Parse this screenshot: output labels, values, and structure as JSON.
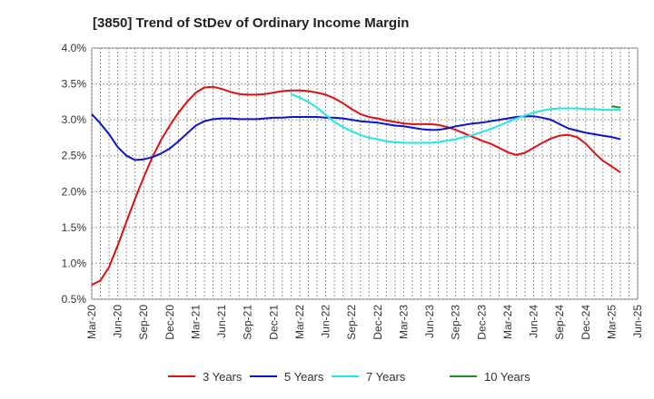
{
  "chart_data": {
    "type": "line",
    "title": "[3850]  Trend of StDev of Ordinary Income Margin",
    "xlabel": "",
    "ylabel": "",
    "ylim": [
      0.5,
      4.0
    ],
    "y_ticks": [
      "0.5%",
      "1.0%",
      "1.5%",
      "2.0%",
      "2.5%",
      "3.0%",
      "3.5%",
      "4.0%"
    ],
    "y_tick_values": [
      0.5,
      1.0,
      1.5,
      2.0,
      2.5,
      3.0,
      3.5,
      4.0
    ],
    "x_ticks": [
      "Mar-20",
      "Jun-20",
      "Sep-20",
      "Dec-20",
      "Mar-21",
      "Jun-21",
      "Sep-21",
      "Dec-21",
      "Mar-22",
      "Jun-22",
      "Sep-22",
      "Dec-22",
      "Mar-23",
      "Jun-23",
      "Sep-23",
      "Dec-23",
      "Mar-24",
      "Jun-24",
      "Sep-24",
      "Dec-24",
      "Mar-25",
      "Jun-25"
    ],
    "grid": true,
    "legend_position": "bottom",
    "x_range": [
      "2020-03",
      "2025-06"
    ],
    "series": [
      {
        "name": "3 Years",
        "color": "#dd1111",
        "points": [
          [
            "2020-03",
            0.7
          ],
          [
            "2020-04",
            0.76
          ],
          [
            "2020-05",
            0.95
          ],
          [
            "2020-06",
            1.25
          ],
          [
            "2020-07",
            1.58
          ],
          [
            "2020-08",
            1.9
          ],
          [
            "2020-09",
            2.2
          ],
          [
            "2020-10",
            2.48
          ],
          [
            "2020-11",
            2.72
          ],
          [
            "2020-12",
            2.92
          ],
          [
            "2021-01",
            3.1
          ],
          [
            "2021-02",
            3.25
          ],
          [
            "2021-03",
            3.38
          ],
          [
            "2021-04",
            3.45
          ],
          [
            "2021-05",
            3.46
          ],
          [
            "2021-06",
            3.43
          ],
          [
            "2021-07",
            3.39
          ],
          [
            "2021-08",
            3.36
          ],
          [
            "2021-09",
            3.35
          ],
          [
            "2021-10",
            3.35
          ],
          [
            "2021-11",
            3.36
          ],
          [
            "2021-12",
            3.38
          ],
          [
            "2022-01",
            3.4
          ],
          [
            "2022-02",
            3.41
          ],
          [
            "2022-03",
            3.41
          ],
          [
            "2022-04",
            3.4
          ],
          [
            "2022-05",
            3.38
          ],
          [
            "2022-06",
            3.35
          ],
          [
            "2022-07",
            3.3
          ],
          [
            "2022-08",
            3.23
          ],
          [
            "2022-09",
            3.15
          ],
          [
            "2022-10",
            3.08
          ],
          [
            "2022-11",
            3.04
          ],
          [
            "2022-12",
            3.02
          ],
          [
            "2023-01",
            2.99
          ],
          [
            "2023-02",
            2.97
          ],
          [
            "2023-03",
            2.95
          ],
          [
            "2023-04",
            2.94
          ],
          [
            "2023-05",
            2.94
          ],
          [
            "2023-06",
            2.94
          ],
          [
            "2023-07",
            2.93
          ],
          [
            "2023-08",
            2.9
          ],
          [
            "2023-09",
            2.86
          ],
          [
            "2023-10",
            2.81
          ],
          [
            "2023-11",
            2.76
          ],
          [
            "2023-12",
            2.71
          ],
          [
            "2024-01",
            2.67
          ],
          [
            "2024-02",
            2.61
          ],
          [
            "2024-03",
            2.55
          ],
          [
            "2024-04",
            2.51
          ],
          [
            "2024-05",
            2.54
          ],
          [
            "2024-06",
            2.61
          ],
          [
            "2024-07",
            2.68
          ],
          [
            "2024-08",
            2.74
          ],
          [
            "2024-09",
            2.78
          ],
          [
            "2024-10",
            2.79
          ],
          [
            "2024-11",
            2.76
          ],
          [
            "2024-12",
            2.67
          ],
          [
            "2025-01",
            2.54
          ],
          [
            "2025-02",
            2.43
          ],
          [
            "2025-03",
            2.35
          ],
          [
            "2025-04",
            2.27
          ]
        ]
      },
      {
        "name": "5 Years",
        "color": "#0a14c8",
        "points": [
          [
            "2020-03",
            3.08
          ],
          [
            "2020-04",
            2.95
          ],
          [
            "2020-05",
            2.8
          ],
          [
            "2020-06",
            2.62
          ],
          [
            "2020-07",
            2.5
          ],
          [
            "2020-08",
            2.44
          ],
          [
            "2020-09",
            2.45
          ],
          [
            "2020-10",
            2.48
          ],
          [
            "2020-11",
            2.53
          ],
          [
            "2020-12",
            2.6
          ],
          [
            "2021-01",
            2.7
          ],
          [
            "2021-02",
            2.81
          ],
          [
            "2021-03",
            2.92
          ],
          [
            "2021-04",
            2.98
          ],
          [
            "2021-05",
            3.01
          ],
          [
            "2021-06",
            3.02
          ],
          [
            "2021-07",
            3.02
          ],
          [
            "2021-08",
            3.01
          ],
          [
            "2021-09",
            3.01
          ],
          [
            "2021-10",
            3.01
          ],
          [
            "2021-11",
            3.02
          ],
          [
            "2021-12",
            3.03
          ],
          [
            "2022-01",
            3.03
          ],
          [
            "2022-02",
            3.04
          ],
          [
            "2022-03",
            3.04
          ],
          [
            "2022-04",
            3.04
          ],
          [
            "2022-05",
            3.04
          ],
          [
            "2022-06",
            3.03
          ],
          [
            "2022-07",
            3.03
          ],
          [
            "2022-08",
            3.02
          ],
          [
            "2022-09",
            3.0
          ],
          [
            "2022-10",
            2.98
          ],
          [
            "2022-11",
            2.97
          ],
          [
            "2022-12",
            2.96
          ],
          [
            "2023-01",
            2.94
          ],
          [
            "2023-02",
            2.92
          ],
          [
            "2023-03",
            2.91
          ],
          [
            "2023-04",
            2.89
          ],
          [
            "2023-05",
            2.87
          ],
          [
            "2023-06",
            2.86
          ],
          [
            "2023-07",
            2.86
          ],
          [
            "2023-08",
            2.88
          ],
          [
            "2023-09",
            2.91
          ],
          [
            "2023-10",
            2.93
          ],
          [
            "2023-11",
            2.95
          ],
          [
            "2023-12",
            2.96
          ],
          [
            "2024-01",
            2.98
          ],
          [
            "2024-02",
            3.0
          ],
          [
            "2024-03",
            3.02
          ],
          [
            "2024-04",
            3.04
          ],
          [
            "2024-05",
            3.05
          ],
          [
            "2024-06",
            3.05
          ],
          [
            "2024-07",
            3.03
          ],
          [
            "2024-08",
            3.0
          ],
          [
            "2024-09",
            2.94
          ],
          [
            "2024-10",
            2.88
          ],
          [
            "2024-11",
            2.85
          ],
          [
            "2024-12",
            2.82
          ],
          [
            "2025-01",
            2.8
          ],
          [
            "2025-02",
            2.78
          ],
          [
            "2025-03",
            2.76
          ],
          [
            "2025-04",
            2.73
          ]
        ]
      },
      {
        "name": "7 Years",
        "color": "#22e6e6",
        "points": [
          [
            "2022-02",
            3.36
          ],
          [
            "2022-03",
            3.31
          ],
          [
            "2022-04",
            3.25
          ],
          [
            "2022-05",
            3.17
          ],
          [
            "2022-06",
            3.07
          ],
          [
            "2022-07",
            2.97
          ],
          [
            "2022-08",
            2.9
          ],
          [
            "2022-09",
            2.84
          ],
          [
            "2022-10",
            2.79
          ],
          [
            "2022-11",
            2.75
          ],
          [
            "2022-12",
            2.73
          ],
          [
            "2023-01",
            2.7
          ],
          [
            "2023-02",
            2.69
          ],
          [
            "2023-03",
            2.68
          ],
          [
            "2023-04",
            2.68
          ],
          [
            "2023-05",
            2.68
          ],
          [
            "2023-06",
            2.68
          ],
          [
            "2023-07",
            2.69
          ],
          [
            "2023-08",
            2.71
          ],
          [
            "2023-09",
            2.73
          ],
          [
            "2023-10",
            2.76
          ],
          [
            "2023-11",
            2.79
          ],
          [
            "2023-12",
            2.83
          ],
          [
            "2024-01",
            2.87
          ],
          [
            "2024-02",
            2.92
          ],
          [
            "2024-03",
            2.97
          ],
          [
            "2024-04",
            3.02
          ],
          [
            "2024-05",
            3.06
          ],
          [
            "2024-06",
            3.1
          ],
          [
            "2024-07",
            3.13
          ],
          [
            "2024-08",
            3.15
          ],
          [
            "2024-09",
            3.16
          ],
          [
            "2024-10",
            3.16
          ],
          [
            "2024-11",
            3.16
          ],
          [
            "2024-12",
            3.15
          ],
          [
            "2025-01",
            3.15
          ],
          [
            "2025-02",
            3.14
          ],
          [
            "2025-03",
            3.14
          ],
          [
            "2025-04",
            3.14
          ]
        ]
      },
      {
        "name": "10 Years",
        "color": "#1e8c1e",
        "points": [
          [
            "2025-03",
            3.19
          ],
          [
            "2025-04",
            3.17
          ]
        ]
      }
    ]
  }
}
